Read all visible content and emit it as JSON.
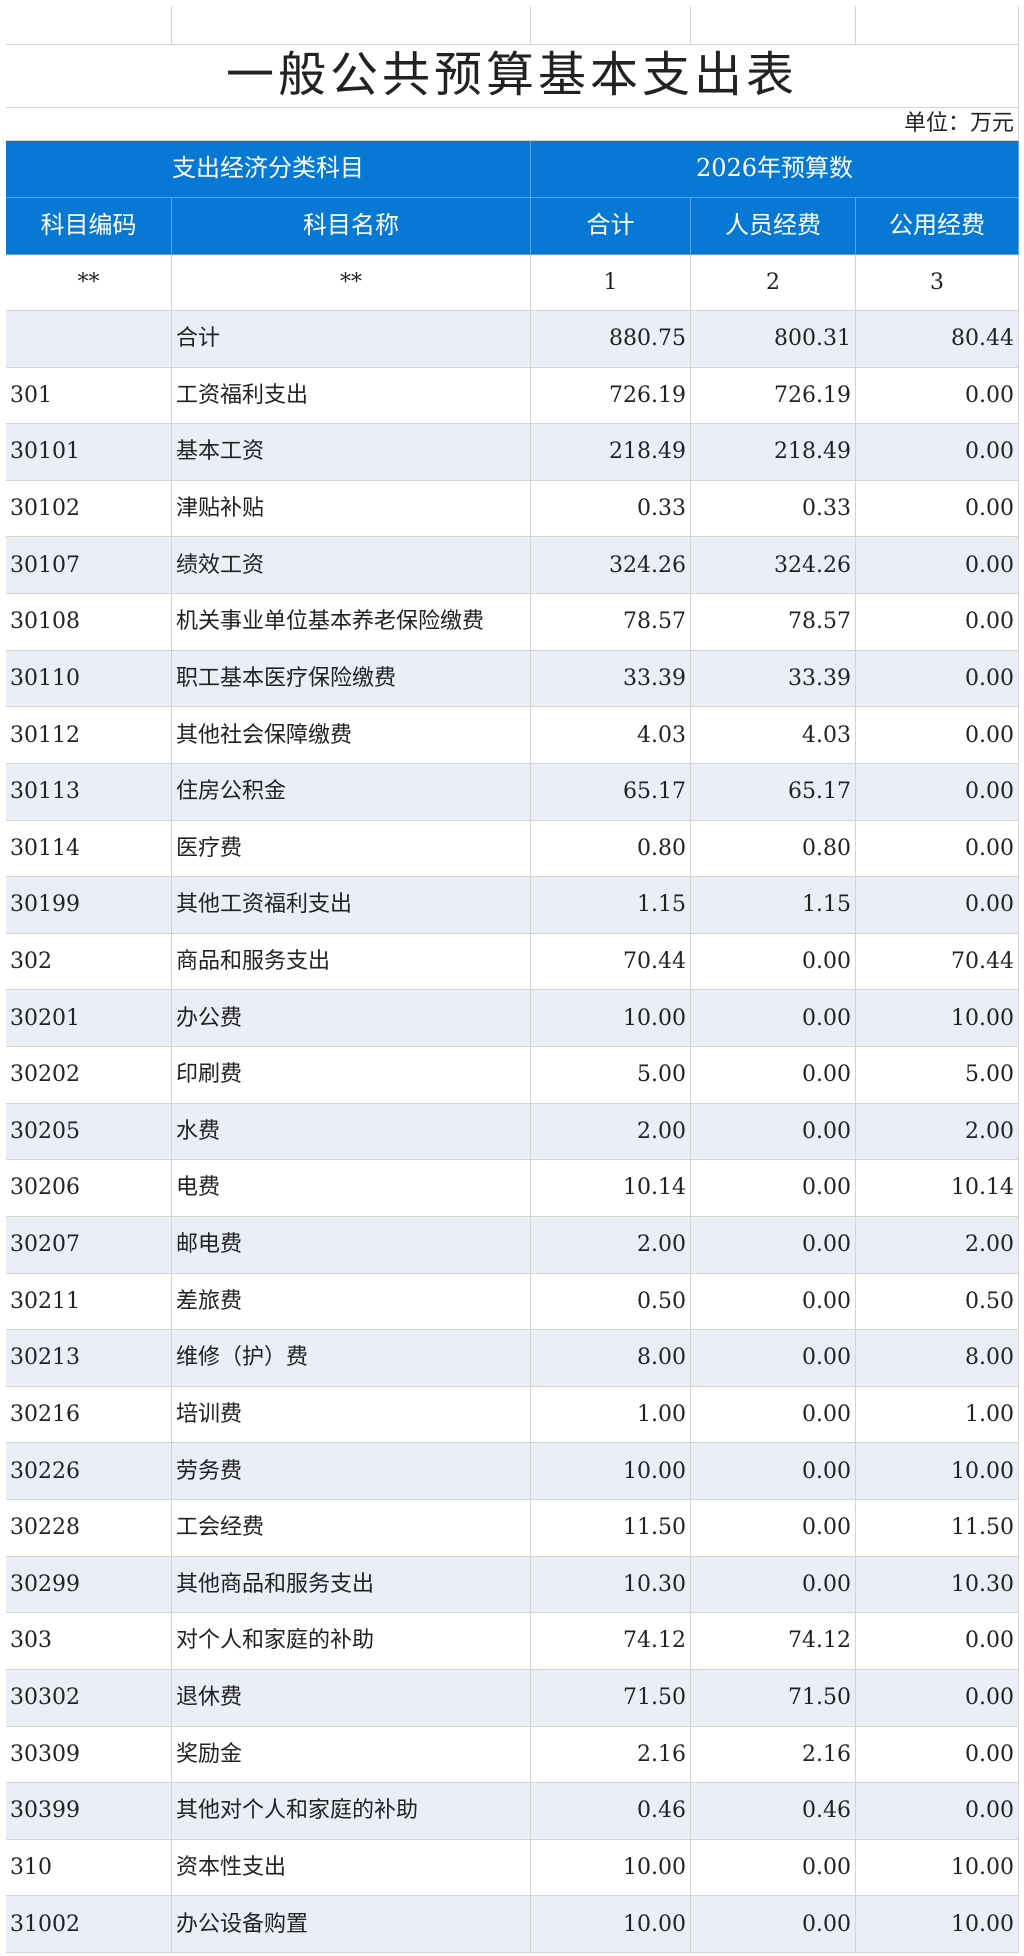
{
  "title": "一般公共预算基本支出表",
  "unit": "单位：万元",
  "header": {
    "group": [
      "支出经济分类科目",
      "2026年预算数"
    ],
    "columns": [
      "科目编码",
      "科目名称",
      "合计",
      "人员经费",
      "公用经费"
    ],
    "sequence": [
      "**",
      "**",
      "1",
      "2",
      "3"
    ]
  },
  "table": {
    "rows": [
      [
        "",
        "合计",
        "880.75",
        "800.31",
        "80.44"
      ],
      [
        "301",
        "工资福利支出",
        "726.19",
        "726.19",
        "0.00"
      ],
      [
        "30101",
        "基本工资",
        "218.49",
        "218.49",
        "0.00"
      ],
      [
        "30102",
        "津贴补贴",
        "0.33",
        "0.33",
        "0.00"
      ],
      [
        "30107",
        "绩效工资",
        "324.26",
        "324.26",
        "0.00"
      ],
      [
        "30108",
        "机关事业单位基本养老保险缴费",
        "78.57",
        "78.57",
        "0.00"
      ],
      [
        "30110",
        "职工基本医疗保险缴费",
        "33.39",
        "33.39",
        "0.00"
      ],
      [
        "30112",
        "其他社会保障缴费",
        "4.03",
        "4.03",
        "0.00"
      ],
      [
        "30113",
        "住房公积金",
        "65.17",
        "65.17",
        "0.00"
      ],
      [
        "30114",
        "医疗费",
        "0.80",
        "0.80",
        "0.00"
      ],
      [
        "30199",
        "其他工资福利支出",
        "1.15",
        "1.15",
        "0.00"
      ],
      [
        "302",
        "商品和服务支出",
        "70.44",
        "0.00",
        "70.44"
      ],
      [
        "30201",
        "办公费",
        "10.00",
        "0.00",
        "10.00"
      ],
      [
        "30202",
        "印刷费",
        "5.00",
        "0.00",
        "5.00"
      ],
      [
        "30205",
        "水费",
        "2.00",
        "0.00",
        "2.00"
      ],
      [
        "30206",
        "电费",
        "10.14",
        "0.00",
        "10.14"
      ],
      [
        "30207",
        "邮电费",
        "2.00",
        "0.00",
        "2.00"
      ],
      [
        "30211",
        "差旅费",
        "0.50",
        "0.00",
        "0.50"
      ],
      [
        "30213",
        "维修（护）费",
        "8.00",
        "0.00",
        "8.00"
      ],
      [
        "30216",
        "培训费",
        "1.00",
        "0.00",
        "1.00"
      ],
      [
        "30226",
        "劳务费",
        "10.00",
        "0.00",
        "10.00"
      ],
      [
        "30228",
        "工会经费",
        "11.50",
        "0.00",
        "11.50"
      ],
      [
        "30299",
        "其他商品和服务支出",
        "10.30",
        "0.00",
        "10.30"
      ],
      [
        "303",
        "对个人和家庭的补助",
        "74.12",
        "74.12",
        "0.00"
      ],
      [
        "30302",
        "退休费",
        "71.50",
        "71.50",
        "0.00"
      ],
      [
        "30309",
        "奖励金",
        "2.16",
        "2.16",
        "0.00"
      ],
      [
        "30399",
        "其他对个人和家庭的补助",
        "0.46",
        "0.46",
        "0.00"
      ],
      [
        "310",
        "资本性支出",
        "10.00",
        "0.00",
        "10.00"
      ],
      [
        "31002",
        "办公设备购置",
        "10.00",
        "0.00",
        "10.00"
      ]
    ]
  }
}
